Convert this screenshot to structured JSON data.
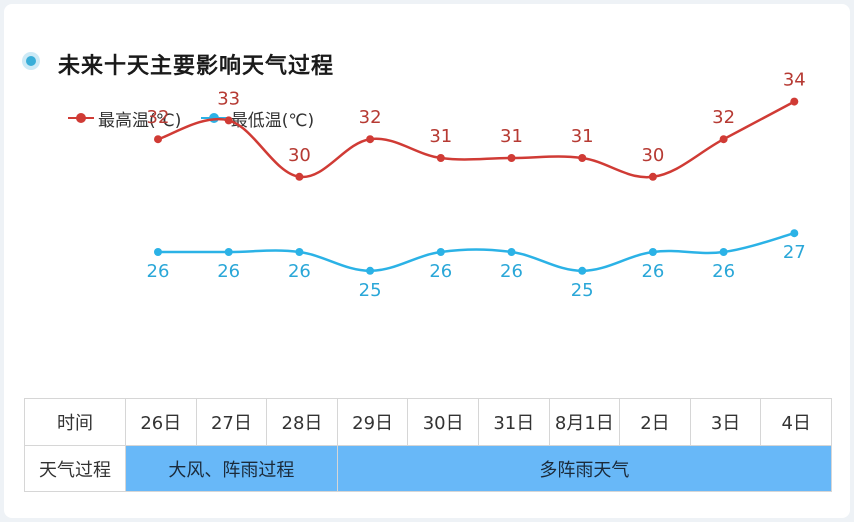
{
  "title": "未来十天主要影响天气过程",
  "colors": {
    "high": "#d03b35",
    "low": "#2bb2e6",
    "process": "#68b8f8"
  },
  "chart_data": {
    "type": "line",
    "categories": [
      "26日",
      "27日",
      "28日",
      "29日",
      "30日",
      "31日",
      "8月1日",
      "2日",
      "3日",
      "4日"
    ],
    "series": [
      {
        "name": "最高温(℃)",
        "values": [
          32,
          33,
          30,
          32,
          31,
          31,
          31,
          30,
          32,
          34
        ]
      },
      {
        "name": "最低温(℃)",
        "values": [
          26,
          26,
          26,
          25,
          26,
          26,
          25,
          26,
          26,
          27
        ]
      }
    ],
    "legend": "top-left",
    "grid": false
  },
  "table": {
    "row_label_time": "时间",
    "row_label_weather": "天气过程",
    "days": [
      "26日",
      "27日",
      "28日",
      "29日",
      "30日",
      "31日",
      "8月1日",
      "2日",
      "3日",
      "4日"
    ],
    "processes": [
      {
        "label": "大风、阵雨过程",
        "span": 3
      },
      {
        "label": "多阵雨天气",
        "span": 7
      }
    ]
  }
}
